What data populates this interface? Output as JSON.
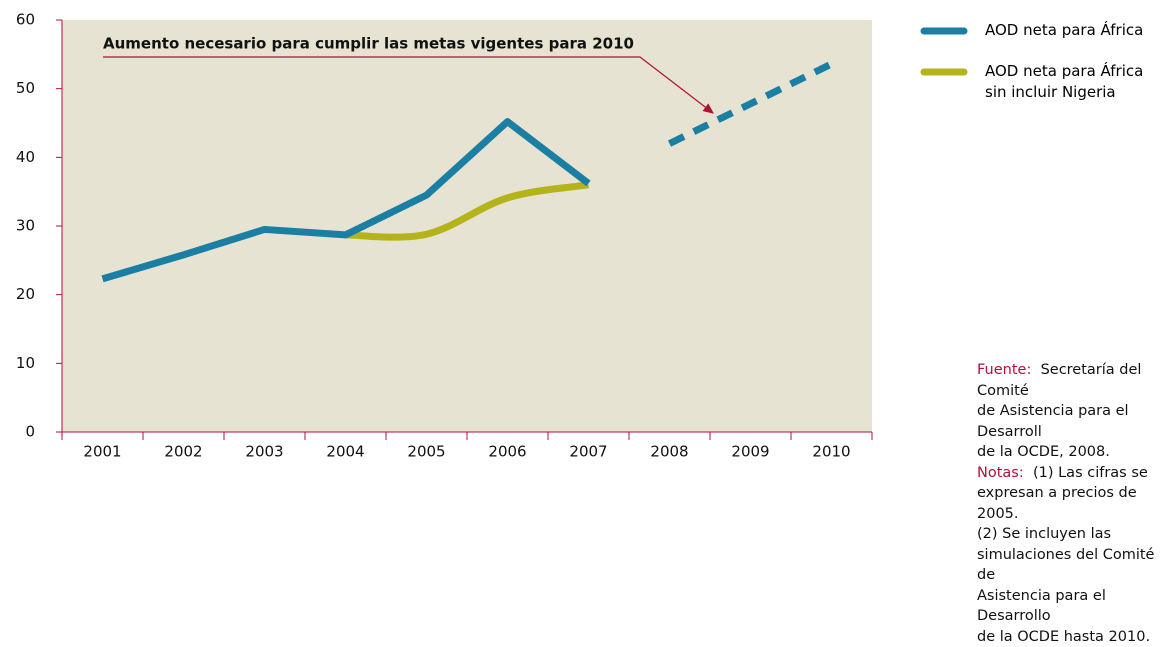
{
  "chart_data": {
    "type": "line",
    "categories": [
      "2001",
      "2002",
      "2003",
      "2004",
      "2005",
      "2006",
      "2007",
      "2008",
      "2009",
      "2010"
    ],
    "series": [
      {
        "name": "AOD neta para África",
        "color": "#1a7fa3",
        "values": [
          22.3,
          25.8,
          29.5,
          28.7,
          34.5,
          45.2,
          36.2,
          42.0,
          47.8,
          53.6
        ],
        "dashed_from_category": "2007"
      },
      {
        "name": "AOD neta para África sin incluir Nigeria",
        "color": "#b5b31a",
        "values": [
          null,
          null,
          null,
          28.7,
          28.8,
          34.1,
          36.0,
          null,
          null,
          null
        ],
        "smooth": true
      }
    ],
    "ylim": [
      0,
      60
    ],
    "yticks": [
      0,
      10,
      20,
      30,
      40,
      50,
      60
    ],
    "background": "#e6e3d3",
    "annotation": "Aumento necesario para cumplir las metas vigentes para 2010",
    "source_label": "Fuente:",
    "source_lines": [
      "Secretaría del Comité",
      "de Asistencia para el Desarroll",
      "de la OCDE, 2008."
    ],
    "notes_label": "Notas:",
    "notes_lines": [
      "(1)  Las cifras se",
      "expresan a precios de 2005.",
      "(2)  Se incluyen las",
      "simulaciones del Comité de",
      "Asistencia para el Desarrollo",
      "de la OCDE hasta 2010."
    ]
  }
}
